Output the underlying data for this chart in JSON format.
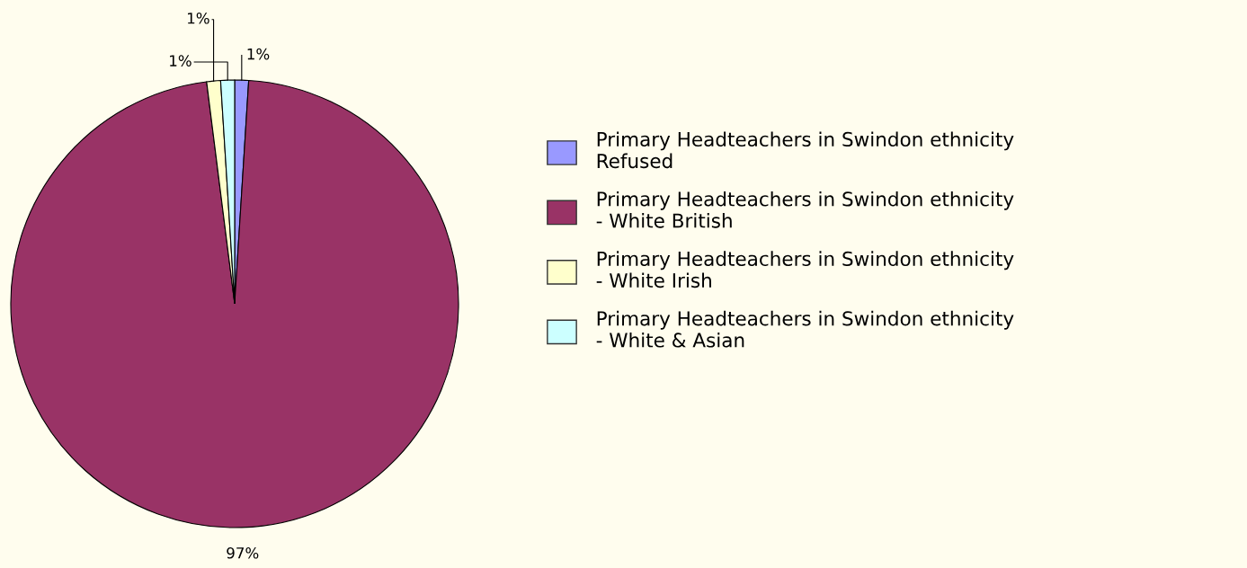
{
  "chart_data": {
    "type": "pie",
    "categories": [
      "Primary Headteachers in Swindon ethnicity Refused",
      "Primary Headteachers in Swindon ethnicity - White British",
      "Primary Headteachers in Swindon ethnicity - White Irish",
      "Primary Headteachers in Swindon ethnicity - White & Asian"
    ],
    "values": [
      1,
      97,
      1,
      1
    ],
    "colors": [
      "#9999ff",
      "#993366",
      "#ffffcc",
      "#ccffff"
    ],
    "value_labels": [
      "1%",
      "97%",
      "1%",
      "1%"
    ],
    "legend": "right"
  }
}
